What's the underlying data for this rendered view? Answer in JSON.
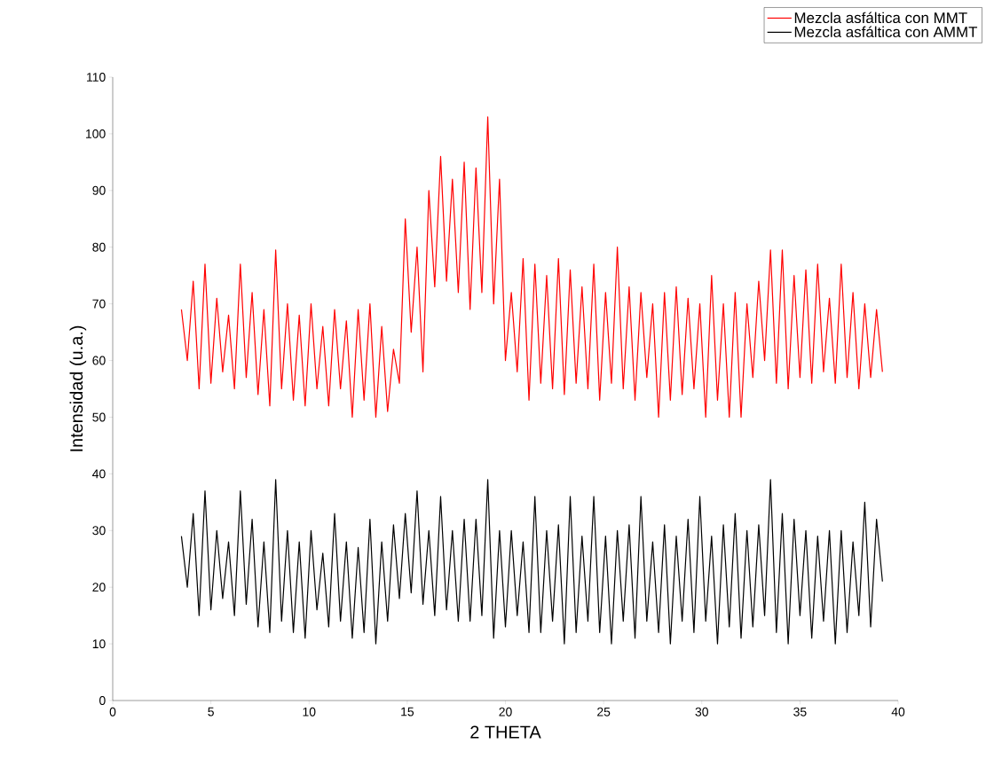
{
  "chart_data": {
    "type": "line",
    "xlabel": "2 THETA",
    "ylabel": "Intensidad (u.a.)",
    "xlim": [
      0,
      40
    ],
    "ylim": [
      0,
      110
    ],
    "xticks": [
      0,
      5,
      10,
      15,
      20,
      25,
      30,
      35,
      40
    ],
    "yticks": [
      0,
      10,
      20,
      30,
      40,
      50,
      60,
      70,
      80,
      90,
      100,
      110
    ],
    "legend": "top right",
    "grid": false,
    "x": [
      3.5,
      3.8,
      4.1,
      4.4,
      4.7,
      5.0,
      5.3,
      5.6,
      5.9,
      6.2,
      6.5,
      6.8,
      7.1,
      7.4,
      7.7,
      8.0,
      8.3,
      8.6,
      8.9,
      9.2,
      9.5,
      9.8,
      10.1,
      10.4,
      10.7,
      11.0,
      11.3,
      11.6,
      11.9,
      12.2,
      12.5,
      12.8,
      13.1,
      13.4,
      13.7,
      14.0,
      14.3,
      14.6,
      14.9,
      15.2,
      15.5,
      15.8,
      16.1,
      16.4,
      16.7,
      17.0,
      17.3,
      17.6,
      17.9,
      18.2,
      18.5,
      18.8,
      19.1,
      19.4,
      19.7,
      20.0,
      20.3,
      20.6,
      20.9,
      21.2,
      21.5,
      21.8,
      22.1,
      22.4,
      22.7,
      23.0,
      23.3,
      23.6,
      23.9,
      24.2,
      24.5,
      24.8,
      25.1,
      25.4,
      25.7,
      26.0,
      26.3,
      26.6,
      26.9,
      27.2,
      27.5,
      27.8,
      28.1,
      28.4,
      28.7,
      29.0,
      29.3,
      29.6,
      29.9,
      30.2,
      30.5,
      30.8,
      31.1,
      31.4,
      31.7,
      32.0,
      32.3,
      32.6,
      32.9,
      33.2,
      33.5,
      33.8,
      34.1,
      34.4,
      34.7,
      35.0,
      35.3,
      35.6,
      35.9,
      36.2,
      36.5,
      36.8,
      37.1,
      37.4,
      37.7,
      38.0,
      38.3,
      38.6,
      38.9,
      39.2
    ],
    "series": [
      {
        "name": "Mezcla asfáltica con MMT",
        "color": "#ff0000",
        "values": [
          69,
          60,
          74,
          55,
          77,
          56,
          71,
          58,
          68,
          55,
          77,
          57,
          72,
          54,
          69,
          52,
          79.5,
          55,
          70,
          53,
          68,
          52,
          70,
          55,
          66,
          52,
          69,
          55,
          67,
          50,
          69,
          53,
          70,
          50,
          66,
          51,
          62,
          56,
          85,
          65,
          80,
          58,
          90,
          73,
          96,
          74,
          92,
          72,
          95,
          69,
          94,
          72,
          103,
          70,
          92,
          60,
          72,
          58,
          78,
          53,
          77,
          56,
          75,
          55,
          78,
          54,
          76,
          56,
          73,
          55,
          77,
          53,
          72,
          56,
          80,
          55,
          73,
          53,
          72,
          57,
          70,
          50,
          72,
          53,
          73,
          54,
          71,
          55,
          70,
          50,
          75,
          53,
          70,
          50,
          72,
          50,
          70,
          57,
          74,
          60,
          79.5,
          56,
          79.5,
          55,
          75,
          57,
          76,
          56,
          77,
          58,
          71,
          56,
          77,
          57,
          72,
          55,
          70,
          57,
          69,
          58
        ]
      },
      {
        "name": "Mezcla asfáltica con AMMT",
        "color": "#000000",
        "values": [
          29,
          20,
          33,
          15,
          37,
          16,
          30,
          18,
          28,
          15,
          37,
          17,
          32,
          13,
          28,
          12,
          39,
          14,
          30,
          12,
          28,
          11,
          30,
          16,
          26,
          13,
          33,
          14,
          28,
          11,
          27,
          12,
          32,
          10,
          28,
          14,
          31,
          18,
          33,
          19,
          37,
          17,
          30,
          15,
          36,
          16,
          30,
          14,
          32,
          14,
          32,
          15,
          39,
          11,
          30,
          13,
          30,
          15,
          28,
          12,
          36,
          12,
          30,
          14,
          31,
          10,
          36,
          12,
          29,
          14,
          36,
          12,
          29,
          10,
          30,
          14,
          31,
          11,
          36,
          14,
          28,
          12,
          31,
          10,
          29,
          14,
          32,
          12,
          36,
          14,
          29,
          10,
          31,
          13,
          33,
          11,
          30,
          13,
          31,
          15,
          39,
          12,
          33,
          10,
          32,
          15,
          30,
          11,
          29,
          14,
          30,
          10,
          30,
          12,
          28,
          15,
          35,
          13,
          32,
          21
        ]
      }
    ]
  }
}
